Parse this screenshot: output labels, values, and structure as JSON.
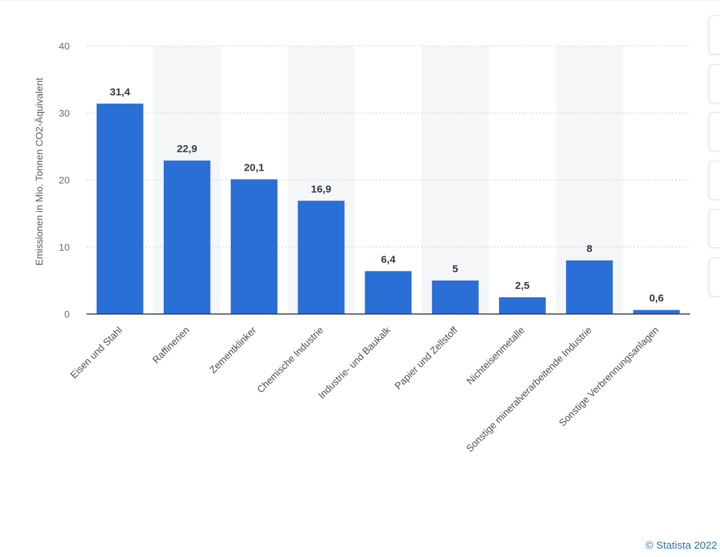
{
  "chart_data": {
    "type": "bar",
    "title": "",
    "xlabel": "",
    "ylabel": "Emissionen in Mio. Tonnen CO2-Äquivalent",
    "ylim": [
      0,
      40
    ],
    "yticks": [
      0,
      10,
      20,
      30,
      40
    ],
    "grid": true,
    "bar_color": "#2a6fd6",
    "categories": [
      "Eisen und Stahl",
      "Raffinerien",
      "Zementklinker",
      "Chemische Industrie",
      "Industrie- und Baukalk",
      "Papier und Zellstoff",
      "Nichteisenmetalle",
      "Sonstige mineralverarbeitende Industrie",
      "Sonstige Verbrennungsanlagen"
    ],
    "values": [
      31.4,
      22.9,
      20.1,
      16.9,
      6.4,
      5,
      2.5,
      8,
      0.6
    ],
    "value_labels": [
      "31,4",
      "22,9",
      "20,1",
      "16,9",
      "6,4",
      "5",
      "2,5",
      "8",
      "0,6"
    ]
  },
  "credit": "© Statista 2022",
  "side_tabs": [
    {
      "icon": "star-icon"
    },
    {
      "icon": "bell-icon"
    },
    {
      "icon": "info-icon"
    },
    {
      "icon": "settings-icon"
    },
    {
      "icon": "share-icon"
    },
    {
      "icon": "print-icon"
    }
  ]
}
